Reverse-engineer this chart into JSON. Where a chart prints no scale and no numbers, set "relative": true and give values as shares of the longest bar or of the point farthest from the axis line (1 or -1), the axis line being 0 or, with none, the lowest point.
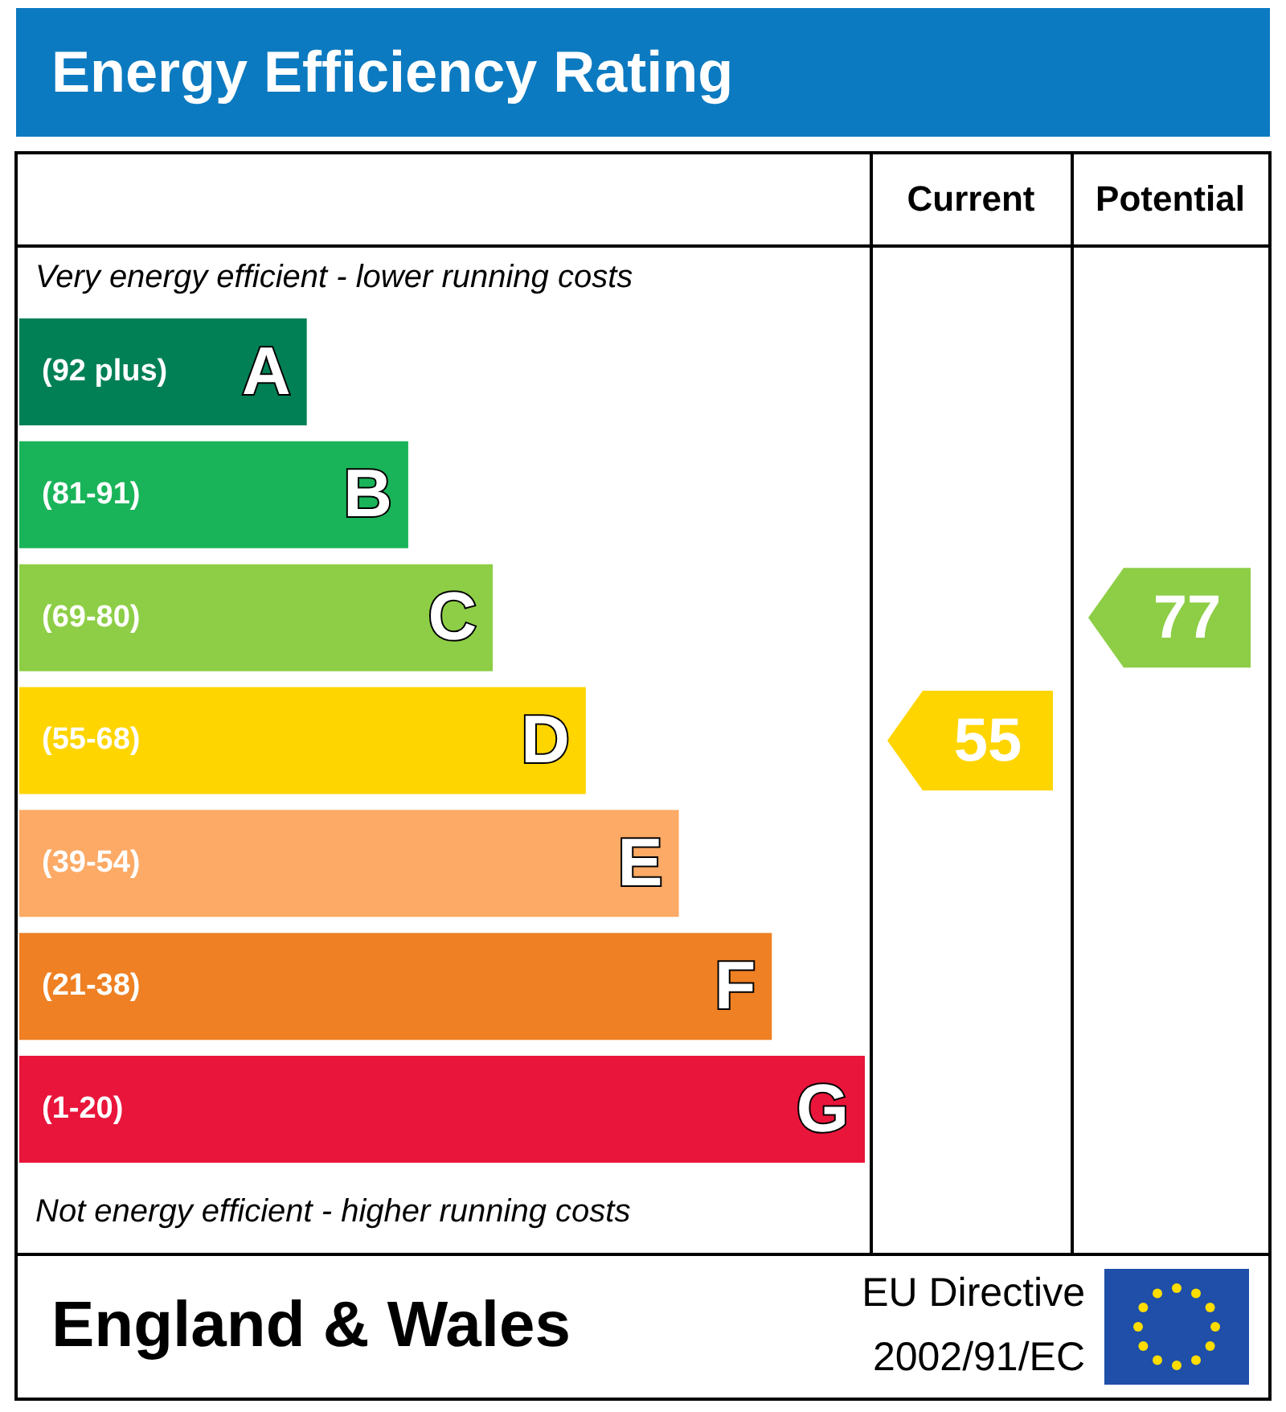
{
  "chart_data": {
    "type": "bar",
    "orientation": "horizontal",
    "relative": true,
    "title": "Energy Efficiency Rating",
    "categories": [
      "(92 plus) A",
      "(81-91) B",
      "(69-80) C",
      "(55-68) D",
      "(39-54) E",
      "(21-38) F",
      "(1-20) G"
    ],
    "values": [
      0.34,
      0.46,
      0.56,
      0.67,
      0.78,
      0.89,
      1
    ],
    "colors": [
      "#008054",
      "#19b459",
      "#8dce46",
      "#ffd500",
      "#fcaa65",
      "#ef8023",
      "#e9153b"
    ],
    "annotations": [
      "Very energy efficient - lower running costs",
      "Not energy efficient - higher running costs",
      "England & Wales",
      "EU Directive",
      "2002/91/EC",
      "Current",
      "Potential",
      "55",
      "77"
    ]
  }
}
